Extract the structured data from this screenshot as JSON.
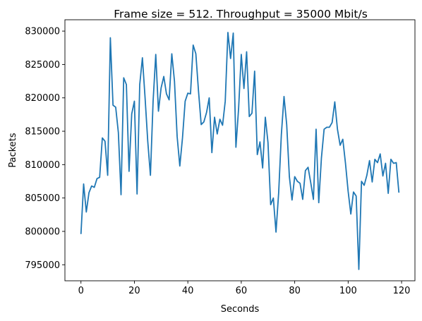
{
  "chart_data": {
    "type": "line",
    "title": "Frame size = 512. Throughput = 35000 Mbit/s",
    "xlabel": "Seconds",
    "ylabel": "Packets",
    "xlim": [
      -6,
      125
    ],
    "ylim": [
      792600,
      831700
    ],
    "xticks": [
      0,
      20,
      40,
      60,
      80,
      100,
      120
    ],
    "yticks": [
      795000,
      800000,
      805000,
      810000,
      815000,
      820000,
      825000,
      830000
    ],
    "grid": false,
    "color": "#1f77b4",
    "series": [
      {
        "x": [
          0,
          1,
          2,
          3,
          4,
          5,
          6,
          7,
          8,
          9,
          10,
          11,
          12,
          13,
          14,
          15,
          16,
          17,
          18,
          19,
          20,
          21,
          22,
          23,
          24,
          25,
          26,
          27,
          28,
          29,
          30,
          31,
          32,
          33,
          34,
          35,
          36,
          37,
          38,
          39,
          40,
          41,
          42,
          43,
          44,
          45,
          46,
          47,
          48,
          49,
          50,
          51,
          52,
          53,
          54,
          55,
          56,
          57,
          58,
          59,
          60,
          61,
          62,
          63,
          64,
          65,
          66,
          67,
          68,
          69,
          70,
          71,
          72,
          73,
          74,
          75,
          76,
          77,
          78,
          79,
          80,
          81,
          82,
          83,
          84,
          85,
          86,
          87,
          88,
          89,
          90,
          91,
          92,
          93,
          94,
          95,
          96,
          97,
          98,
          99,
          100,
          101,
          102,
          103,
          104,
          105,
          106,
          107,
          108,
          109,
          110,
          111,
          112,
          113,
          114,
          115,
          116,
          117,
          118,
          119
        ],
        "values": [
          799600,
          807100,
          802900,
          805800,
          806800,
          806600,
          807900,
          808100,
          814000,
          813500,
          808400,
          829000,
          818900,
          818600,
          814800,
          805500,
          823000,
          822000,
          809000,
          817600,
          819500,
          805600,
          822000,
          826000,
          820000,
          813500,
          808400,
          819500,
          826500,
          818000,
          821500,
          823200,
          820600,
          819700,
          826600,
          822500,
          814200,
          809800,
          814000,
          819500,
          820700,
          820600,
          827900,
          826600,
          821000,
          816000,
          816400,
          817800,
          820000,
          811800,
          817100,
          814600,
          816800,
          815900,
          819500,
          829800,
          825900,
          829700,
          812600,
          818400,
          826500,
          821400,
          826900,
          817200,
          817700,
          824000,
          811500,
          813400,
          809500,
          817100,
          813300,
          804000,
          805000,
          799900,
          805800,
          814500,
          820200,
          816000,
          808200,
          804700,
          808200,
          807500,
          807200,
          804800,
          809100,
          809600,
          807300,
          804800,
          815300,
          804300,
          811000,
          815300,
          815600,
          815600,
          816300,
          819400,
          815300,
          812900,
          813800,
          810200,
          806000,
          802600,
          805900,
          805300,
          794300,
          807500,
          806900,
          808400,
          810600,
          807400,
          810800,
          810300,
          811600,
          808300,
          810200,
          805700,
          810800,
          810200,
          810300,
          805800
        ]
      }
    ]
  }
}
